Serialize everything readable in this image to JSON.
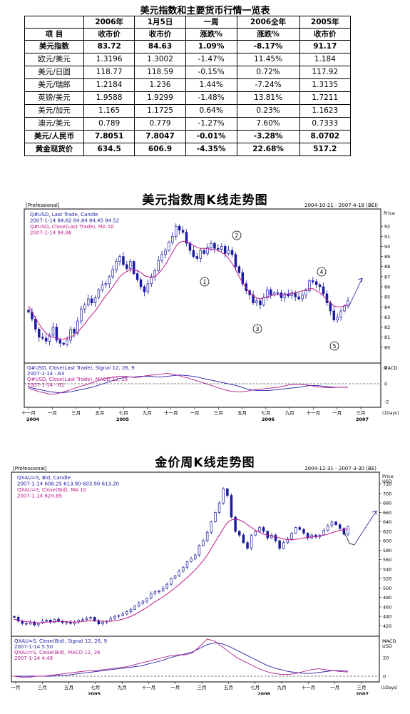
{
  "table": {
    "title": "美元指数和主要货币行情一览表",
    "header_row1": [
      "",
      "2006年",
      "1月5日",
      "一周",
      "2006全年",
      "2005年"
    ],
    "header_row2": [
      "项  目",
      "收市价",
      "收市价",
      "涨跌%",
      "涨跌%",
      "收市价"
    ],
    "rows": [
      {
        "name": "美元指数",
        "cells": [
          "83.72",
          "84.63",
          "1.09%",
          "-8.17%",
          "91.17"
        ],
        "bold": true
      },
      {
        "name": "欧元/美元",
        "cells": [
          "1.3196",
          "1.3002",
          "-1.47%",
          "11.45%",
          "1.184"
        ],
        "bold": false
      },
      {
        "name": "美元/日圆",
        "cells": [
          "118.77",
          "118.59",
          "-0.15%",
          "0.72%",
          "117.92"
        ],
        "bold": false
      },
      {
        "name": "美元/瑞郎",
        "cells": [
          "1.2184",
          "1.236",
          "1.44%",
          "-7.24%",
          "1.3135"
        ],
        "bold": false
      },
      {
        "name": "英镑/美元",
        "cells": [
          "1.9588",
          "1.9299",
          "-1.48%",
          "13.81%",
          "1.7211"
        ],
        "bold": false
      },
      {
        "name": "美元/加元",
        "cells": [
          "1.165",
          "1.1725",
          "0.64%",
          "0.23%",
          "1.1623"
        ],
        "bold": false
      },
      {
        "name": "澳元/美元",
        "cells": [
          "0.789",
          "0.779",
          "-1.27%",
          "7.60%",
          "0.7333"
        ],
        "bold": false
      },
      {
        "name": "美元/人民币",
        "cells": [
          "7.8051",
          "7.8047",
          "-0.01%",
          "-3.28%",
          "8.0702"
        ],
        "bold": true
      },
      {
        "name": "黄金现货价",
        "cells": [
          "634.5",
          "606.9",
          "-4.35%",
          "22.68%",
          "517.2"
        ],
        "bold": true
      }
    ]
  },
  "chart_data": [
    {
      "type": "line",
      "title": "美元指数周K线走势图",
      "badge": "[Professional]",
      "date_range": "2004-10-21 - 2007-4-18 (BEI)",
      "legend": [
        "Q#USD, Last Trade, Candle",
        "2007-1-14 84.62 84.84 84.45 84.52",
        "Q#USD, Close(Last Trade), MA 10",
        "2007-1-14 84.86"
      ],
      "y_axis_label": "Price",
      "ylim": [
        79,
        93
      ],
      "yticks": [
        80,
        81,
        82,
        83,
        84,
        85,
        86,
        87,
        88,
        89,
        90,
        91,
        92
      ],
      "series": [
        {
          "name": "Q#USD, Last Trade, Candle",
          "values": [
            83.5,
            82.8,
            81.8,
            81.0,
            80.9,
            80.6,
            81.2,
            82.0,
            80.7,
            80.4,
            80.3,
            80.7,
            81.8,
            81.4,
            82.6,
            83.8,
            84.2,
            84.8,
            84.4,
            84.9,
            85.7,
            86.2,
            86.3,
            87.0,
            87.7,
            88.5,
            89.0,
            88.2,
            87.8,
            88.5,
            87.3,
            86.7,
            86.0,
            85.5,
            86.3,
            87.0,
            87.6,
            88.6,
            89.2,
            89.6,
            90.4,
            91.0,
            92.0,
            91.6,
            91.4,
            90.3,
            89.6,
            89.0,
            88.8,
            89.6,
            89.3,
            89.9,
            90.3,
            89.8,
            89.7,
            90.0,
            89.3,
            89.6,
            89.2,
            88.0,
            87.4,
            86.3,
            85.6,
            85.2,
            84.4,
            84.6,
            84.2,
            84.9,
            85.7,
            85.2,
            85.4,
            85.4,
            84.9,
            85.3,
            85.1,
            85.4,
            85.0,
            84.8,
            85.2,
            85.6,
            86.6,
            86.5,
            86.2,
            86.0,
            85.3,
            84.4,
            83.6,
            82.7,
            83.0,
            83.6,
            84.1,
            84.6
          ]
        },
        {
          "name": "Q#USD, Close(Last Trade), MA 10",
          "values": [
            84.1,
            83.5,
            82.9,
            82.3,
            81.8,
            81.4,
            81.1,
            81.0,
            80.9,
            80.8,
            80.8,
            80.9,
            81.0,
            81.2,
            81.5,
            81.9,
            82.3,
            82.8,
            83.2,
            83.6,
            84.1,
            84.6,
            85.1,
            85.5,
            86.0,
            86.5,
            87.0,
            87.3,
            87.5,
            87.7,
            87.7,
            87.6,
            87.4,
            87.1,
            87.0,
            86.9,
            87.0,
            87.3,
            87.7,
            88.2,
            88.8,
            89.4,
            90.0,
            90.4,
            90.5,
            90.5,
            90.3,
            90.1,
            89.9,
            89.8,
            89.8,
            89.8,
            89.7,
            89.7,
            89.6,
            89.4,
            89.2,
            88.8,
            88.3,
            87.7,
            87.0,
            86.4,
            85.9,
            85.4,
            85.1,
            84.9,
            84.8,
            84.9,
            85.0,
            85.1,
            85.2,
            85.2,
            85.2,
            85.2,
            85.3,
            85.3,
            85.4,
            85.5,
            85.6,
            85.7,
            85.8,
            85.8,
            85.6,
            85.4,
            85.1,
            84.7,
            84.4,
            84.1,
            84.0,
            84.0,
            84.1,
            84.3
          ]
        }
      ],
      "annotations": [
        "1",
        "2",
        "3",
        "4",
        "5"
      ],
      "macd": {
        "legend": [
          "Q#USD, Close(Last Trade), Signal 12, 26, 9",
          "2007-1-14 -.63",
          "Q#USD, Close(Last Trade), MACD 12, 26",
          "2007-1-14 -.61"
        ],
        "y_axis_label": "MACD",
        "yticks": [
          "2",
          "0",
          "-2"
        ],
        "series": [
          {
            "name": "Signal 12, 26, 9",
            "values": [
              -0.6,
              -0.8,
              -1.0,
              -1.2,
              -1.4,
              -1.5,
              -1.6,
              -1.5,
              -1.4,
              -1.2,
              -1.0,
              -0.8,
              -0.6,
              -0.3,
              0.0,
              0.3,
              0.6,
              0.9,
              1.1,
              1.2,
              1.2,
              1.3,
              1.3,
              1.3,
              1.2,
              1.2,
              1.3,
              1.4,
              1.5,
              1.5,
              1.4,
              1.3,
              1.1,
              0.9,
              0.7,
              0.5,
              0.3,
              0.1,
              -0.1,
              -0.3,
              -0.6,
              -0.9,
              -1.1,
              -1.2,
              -1.2,
              -1.2,
              -1.1,
              -1.0,
              -0.9,
              -0.8,
              -0.7,
              -0.6,
              -0.4,
              -0.3,
              -0.3,
              -0.4,
              -0.5,
              -0.6,
              -0.6,
              -0.6,
              -0.6
            ]
          },
          {
            "name": "MACD 12, 26",
            "values": [
              -0.8,
              -1.1,
              -1.4,
              -1.6,
              -1.8,
              -1.8,
              -1.6,
              -1.3,
              -1.0,
              -0.7,
              -0.4,
              -0.1,
              0.2,
              0.5,
              0.8,
              1.0,
              1.2,
              1.3,
              1.3,
              1.2,
              1.1,
              1.2,
              1.4,
              1.5,
              1.6,
              1.7,
              1.8,
              1.7,
              1.5,
              1.2,
              1.0,
              0.7,
              0.4,
              0.1,
              -0.2,
              -0.5,
              -0.8,
              -1.1,
              -1.3,
              -1.4,
              -1.4,
              -1.3,
              -1.1,
              -1.0,
              -0.9,
              -0.8,
              -0.7,
              -0.6,
              -0.4,
              -0.2,
              -0.1,
              -0.1,
              -0.2,
              -0.3,
              -0.5,
              -0.6,
              -0.7,
              -0.7,
              -0.6,
              -0.6,
              -0.61
            ]
          }
        ]
      },
      "x_month_labels": [
        "十一月",
        "一月",
        "三月",
        "五月",
        "七月",
        "九月",
        "十一月",
        "一月",
        "三月",
        "五月",
        "七月",
        "九月",
        "十一月",
        "一月",
        "三月"
      ],
      "x_year_labels": [
        "2004",
        "2005",
        "2006",
        "2007"
      ],
      "x_unit": "(1Days)"
    },
    {
      "type": "line",
      "title": "金价周K线走势图",
      "badge": "[Professional]",
      "date_range": "2004-12-31 - 2007-3-30 (BE)",
      "legend": [
        "QXAU=S, Bid, Candle",
        "2007-1-14 608.25 613.90 603.90 613.20",
        "QXAU=S, Close(Bid), MA 10",
        "2007-1-14 624.85"
      ],
      "y_axis_label": "Price",
      "y_axis_unit": "USD",
      "ylim": [
        410,
        730
      ],
      "yticks": [
        420,
        440,
        460,
        480,
        500,
        520,
        540,
        560,
        580,
        600,
        620,
        640,
        660,
        680,
        700,
        720
      ],
      "series": [
        {
          "name": "QXAU=S, Bid, Candle",
          "values": [
            438,
            430,
            425,
            424,
            428,
            422,
            426,
            430,
            432,
            428,
            434,
            430,
            427,
            428,
            425,
            428,
            432,
            433,
            436,
            438,
            430,
            424,
            428,
            430,
            436,
            440,
            442,
            445,
            450,
            455,
            462,
            468,
            472,
            478,
            488,
            492,
            494,
            500,
            508,
            520,
            526,
            536,
            544,
            556,
            562,
            570,
            590,
            600,
            618,
            640,
            660,
            680,
            710,
            696,
            650,
            620,
            612,
            596,
            584,
            612,
            620,
            628,
            620,
            606,
            612,
            600,
            584,
            596,
            604,
            616,
            628,
            624,
            616,
            606,
            612,
            608,
            612,
            622,
            632,
            640,
            634,
            626,
            614,
            630
          ]
        },
        {
          "name": "QXAU=S, Close(Bid), MA 10",
          "values": [
            434,
            432,
            430,
            429,
            428,
            427,
            426,
            427,
            428,
            428,
            429,
            429,
            429,
            429,
            428,
            428,
            428,
            429,
            430,
            431,
            431,
            431,
            430,
            429,
            430,
            431,
            432,
            434,
            437,
            440,
            444,
            449,
            454,
            459,
            465,
            471,
            476,
            481,
            487,
            494,
            500,
            507,
            515,
            522,
            530,
            538,
            548,
            558,
            570,
            584,
            598,
            612,
            626,
            638,
            644,
            646,
            644,
            640,
            634,
            628,
            622,
            618,
            614,
            612,
            610,
            608,
            606,
            604,
            602,
            602,
            603,
            604,
            606,
            607,
            608,
            609,
            610,
            612,
            614,
            617,
            620,
            622,
            624,
            625
          ]
        }
      ],
      "macd": {
        "legend": [
          "QXAU=S, Close(Bid), Signal 12, 26, 9",
          "2007-1-14 5.50",
          "QXAU=S, Close(Bid), MACD 12, 26",
          "2007-1-14 4.49"
        ],
        "y_axis_label": "MACD",
        "y_axis_unit": "USD",
        "yticks": [
          "20",
          "0"
        ],
        "series": [
          {
            "name": "Signal 12, 26, 9",
            "values": [
              0,
              0,
              0,
              0,
              0,
              0,
              1,
              1,
              2,
              3,
              4,
              5,
              6,
              7,
              8,
              9,
              10,
              11,
              13,
              15,
              17,
              20,
              22,
              24,
              26,
              30,
              34,
              36,
              35,
              32,
              28,
              24,
              20,
              16,
              12,
              9,
              7,
              5,
              4,
              3,
              3,
              4,
              5,
              6,
              6,
              5.5
            ]
          },
          {
            "name": "MACD 12, 26",
            "values": [
              0,
              -1,
              -1,
              0,
              0,
              1,
              2,
              3,
              4,
              5,
              6,
              6,
              7,
              8,
              9,
              10,
              12,
              14,
              16,
              18,
              20,
              22,
              23,
              23,
              25,
              32,
              40,
              38,
              32,
              26,
              20,
              16,
              12,
              8,
              5,
              3,
              2,
              2,
              3,
              5,
              7,
              8,
              7,
              6,
              5,
              4.49
            ]
          }
        ]
      },
      "x_month_labels": [
        "一月",
        "三月",
        "五月",
        "七月",
        "九月",
        "十一月",
        "一月",
        "三月",
        "五月",
        "七月",
        "九月",
        "十一月",
        "一月",
        "三月"
      ],
      "x_year_labels": [
        "2005",
        "2006",
        "2007"
      ],
      "x_unit": "(1Days)"
    }
  ],
  "colors": {
    "candle": "#1a1aa6",
    "ma": "#c0188c",
    "signal": "#2222aa",
    "macd": "#b01a8c",
    "annotation_arrow": "#1a1aa6"
  }
}
